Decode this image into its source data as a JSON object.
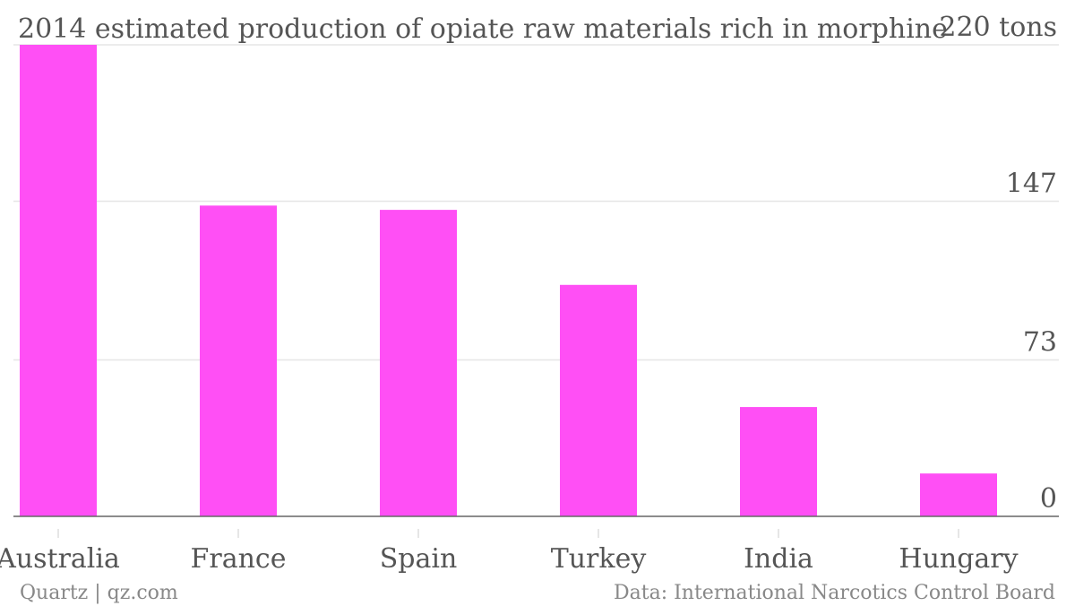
{
  "chart_data": {
    "type": "bar",
    "title": "2014 estimated production of opiate raw materials rich in morphine",
    "categories": [
      "Australia",
      "France",
      "Spain",
      "Turkey",
      "India",
      "Hungary"
    ],
    "values": [
      220,
      145,
      143,
      108,
      51,
      20
    ],
    "unit": "tons",
    "ylim": [
      0,
      220
    ],
    "yticks": [
      {
        "value": 220,
        "label": "220 tons"
      },
      {
        "value": 147,
        "label": "147"
      },
      {
        "value": 73,
        "label": "73"
      },
      {
        "value": 0,
        "label": "0"
      }
    ],
    "xlabel": "",
    "ylabel": "",
    "grid": true,
    "bar_color": "#ff4ff5"
  },
  "footer": {
    "source_left": "Quartz | qz.com",
    "source_right": "Data: International Narcotics Control Board"
  }
}
